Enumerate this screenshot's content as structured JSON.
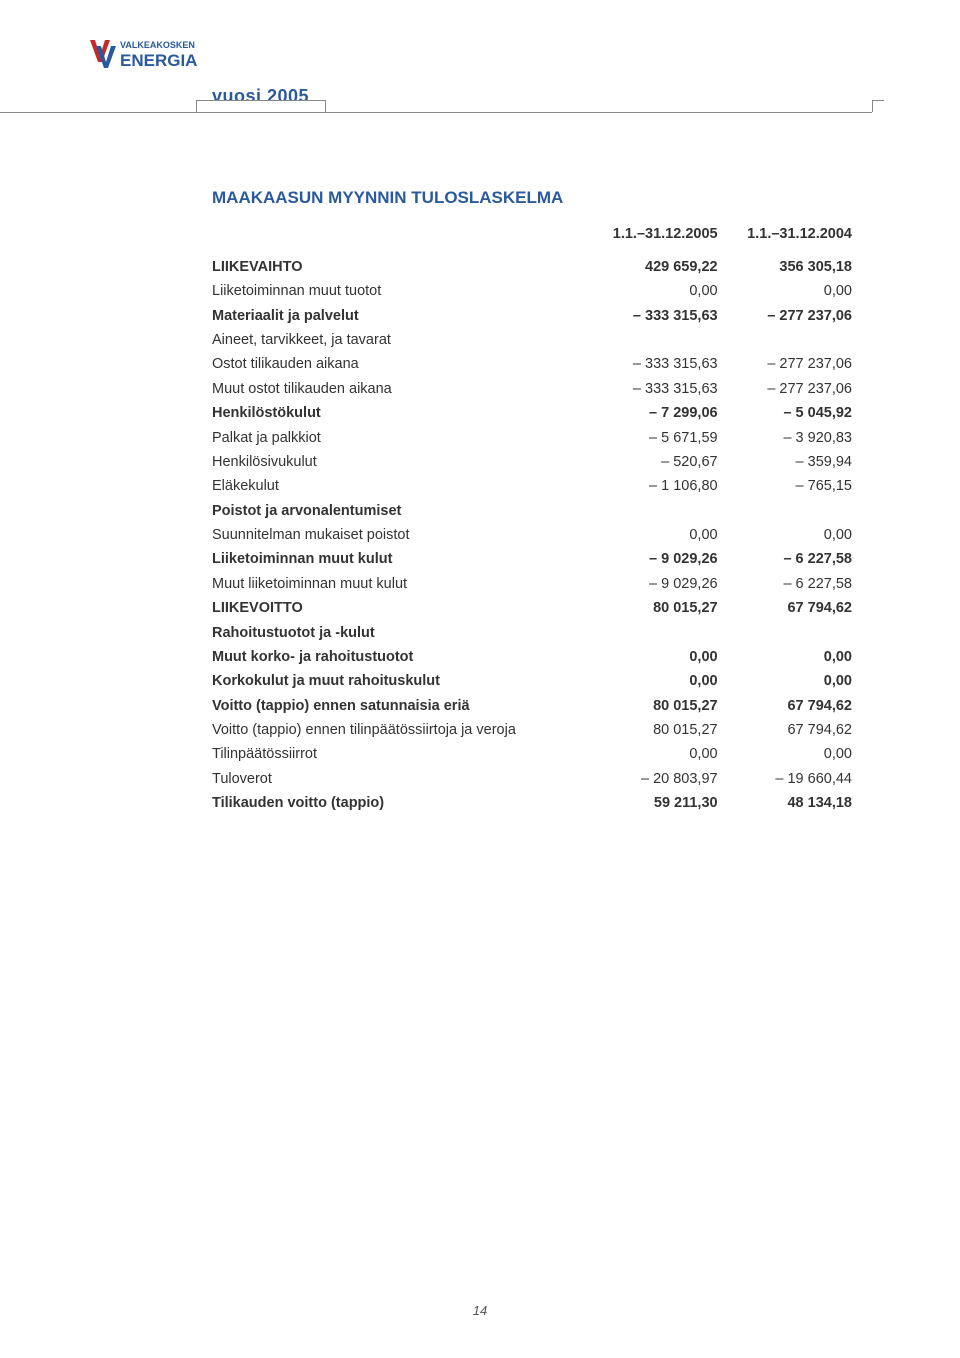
{
  "logo": {
    "top_text": "VALKEAKOSKEN",
    "bottom_text": "ENERGIA",
    "top_color": "#2a5a9c",
    "bottom_color": "#2a5a9c",
    "accent_red": "#c62828"
  },
  "year_label": "vuosi 2005",
  "title": "MAAKAASUN MYYNNIN TULOSLASKELMA",
  "periods": {
    "c1": "1.1.–31.12.2005",
    "c2": "1.1.–31.12.2004"
  },
  "rows": [
    {
      "label": "LIIKEVAIHTO",
      "c1": "429 659,22",
      "c2": "356 305,18",
      "bold": true
    },
    {
      "label": "Liiketoiminnan muut tuotot",
      "c1": "0,00",
      "c2": "0,00"
    },
    {
      "label": "Materiaalit ja palvelut",
      "c1": "– 333 315,63",
      "c2": "– 277 237,06",
      "bold": true
    },
    {
      "label": "Aineet, tarvikkeet, ja tavarat",
      "c1": "",
      "c2": ""
    },
    {
      "label": "Ostot tilikauden aikana",
      "c1": "– 333 315,63",
      "c2": "– 277 237,06"
    },
    {
      "label": "Muut ostot tilikauden aikana",
      "c1": "– 333 315,63",
      "c2": "– 277 237,06"
    },
    {
      "label": "Henkilöstökulut",
      "c1": "– 7 299,06",
      "c2": "– 5 045,92",
      "bold": true
    },
    {
      "label": "Palkat ja palkkiot",
      "c1": "– 5 671,59",
      "c2": "– 3 920,83"
    },
    {
      "label": "Henkilösivukulut",
      "c1": "– 520,67",
      "c2": "– 359,94"
    },
    {
      "label": "Eläkekulut",
      "c1": "– 1 106,80",
      "c2": "– 765,15"
    },
    {
      "label": "Poistot ja arvonalentumiset",
      "c1": "",
      "c2": "",
      "bold": true
    },
    {
      "label": "Suunnitelman mukaiset poistot",
      "c1": "0,00",
      "c2": "0,00"
    },
    {
      "label": "Liiketoiminnan muut kulut",
      "c1": "– 9 029,26",
      "c2": "– 6 227,58",
      "bold": true
    },
    {
      "label": "Muut liiketoiminnan muut kulut",
      "c1": "– 9 029,26",
      "c2": "– 6 227,58"
    },
    {
      "label": "LIIKEVOITTO",
      "c1": "80 015,27",
      "c2": "67 794,62",
      "bold": true
    },
    {
      "label": "Rahoitustuotot ja -kulut",
      "c1": "",
      "c2": "",
      "bold": true
    },
    {
      "label": "Muut korko- ja rahoitustuotot",
      "c1": "0,00",
      "c2": "0,00",
      "bold": true
    },
    {
      "label": "Korkokulut ja muut rahoituskulut",
      "c1": "0,00",
      "c2": "0,00",
      "bold": true
    },
    {
      "label": "Voitto (tappio) ennen satunnaisia eriä",
      "c1": "80 015,27",
      "c2": "67 794,62",
      "bold": true
    },
    {
      "label": "Voitto (tappio) ennen tilinpäätössiirtoja ja veroja",
      "c1": "80 015,27",
      "c2": "67 794,62"
    },
    {
      "label": "Tilinpäätössiirrot",
      "c1": "0,00",
      "c2": "0,00"
    },
    {
      "label": "Tuloverot",
      "c1": "– 20 803,97",
      "c2": "– 19 660,44"
    },
    {
      "label": "Tilikauden voitto (tappio)",
      "c1": "59 211,30",
      "c2": "48 134,18",
      "bold": true
    }
  ],
  "page_number": "14"
}
